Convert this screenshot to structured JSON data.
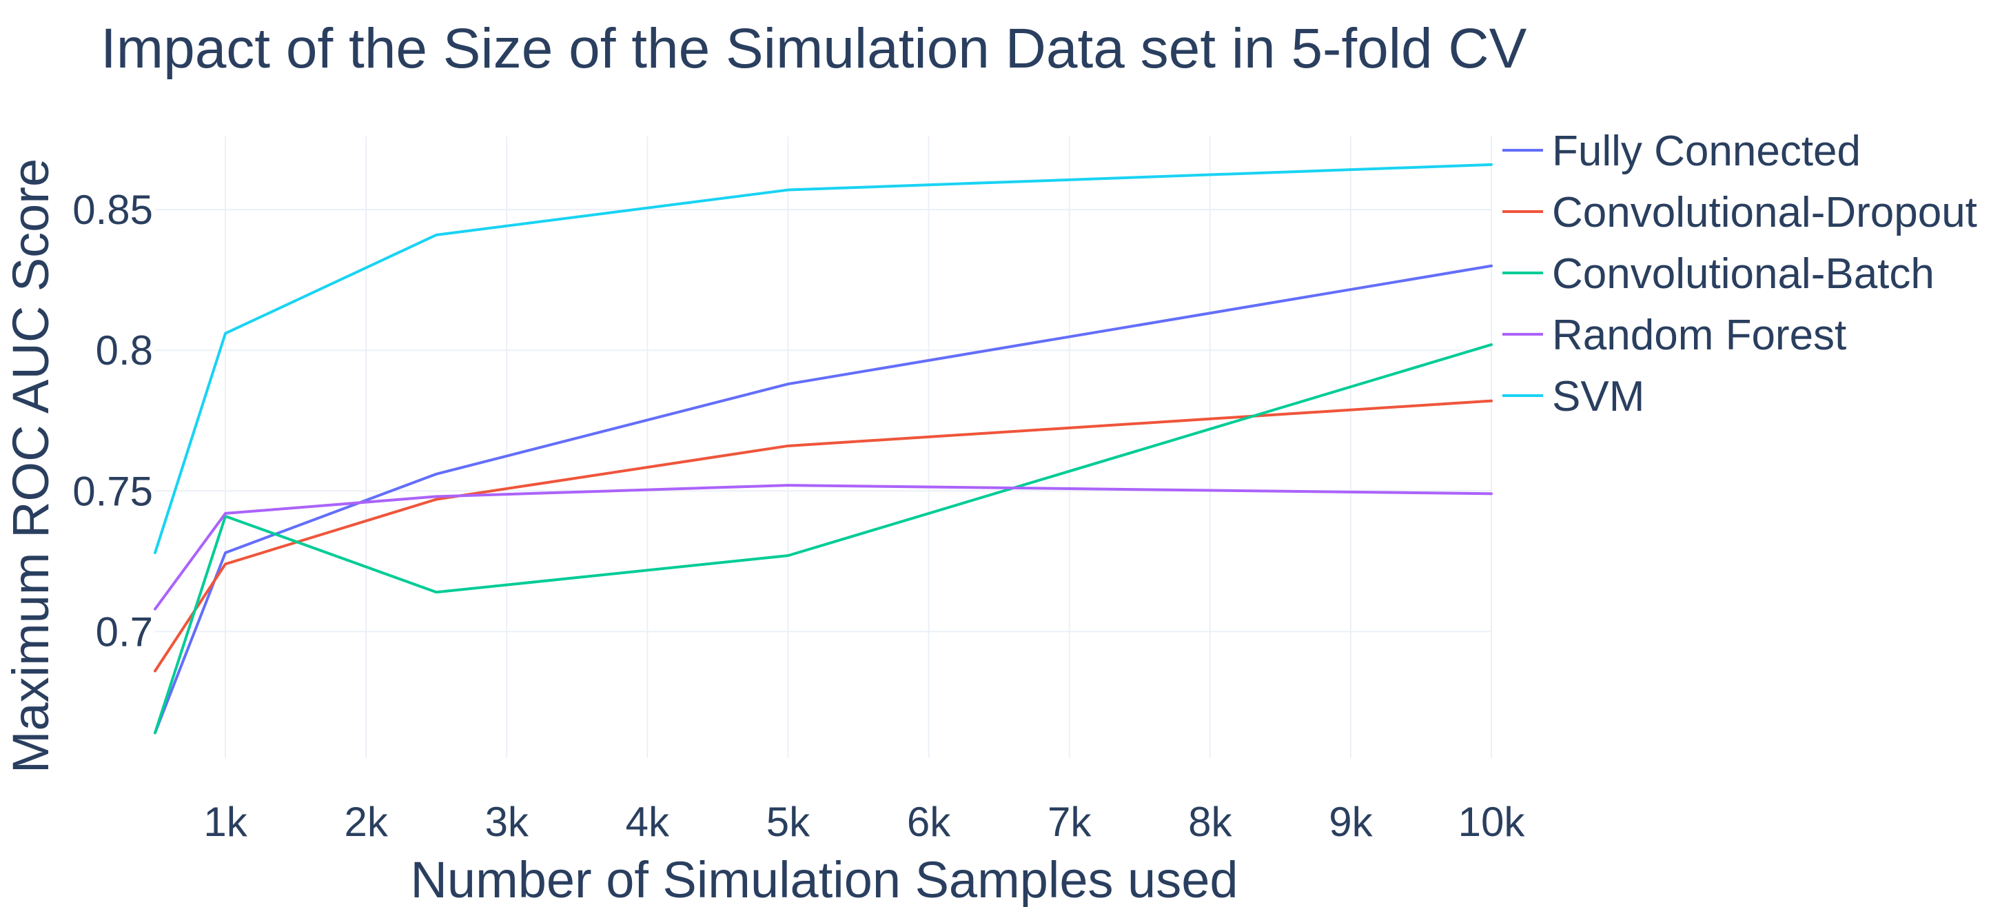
{
  "chart_data": {
    "type": "line",
    "title": "Impact of the Size of the Simulation Data set in 5-fold CV",
    "xlabel": "Number of Simulation Samples used",
    "ylabel": "Maximum ROC AUC Score",
    "x": [
      500,
      1000,
      2500,
      5000,
      10000
    ],
    "xlim": [
      500,
      10000
    ],
    "ylim": [
      0.655,
      0.876
    ],
    "x_ticks": [
      {
        "value": 1000,
        "label": "1k"
      },
      {
        "value": 2000,
        "label": "2k"
      },
      {
        "value": 3000,
        "label": "3k"
      },
      {
        "value": 4000,
        "label": "4k"
      },
      {
        "value": 5000,
        "label": "5k"
      },
      {
        "value": 6000,
        "label": "6k"
      },
      {
        "value": 7000,
        "label": "7k"
      },
      {
        "value": 8000,
        "label": "8k"
      },
      {
        "value": 9000,
        "label": "9k"
      },
      {
        "value": 10000,
        "label": "10k"
      }
    ],
    "y_ticks": [
      {
        "value": 0.7,
        "label": "0.7"
      },
      {
        "value": 0.75,
        "label": "0.75"
      },
      {
        "value": 0.8,
        "label": "0.8"
      },
      {
        "value": 0.85,
        "label": "0.85"
      }
    ],
    "grid": true,
    "legend_position": "top-right",
    "series": [
      {
        "name": "Fully Connected",
        "color": "#636efa",
        "values": [
          0.664,
          0.728,
          0.756,
          0.788,
          0.83
        ]
      },
      {
        "name": "Convolutional-Dropout",
        "color": "#EF553B",
        "values": [
          0.686,
          0.724,
          0.747,
          0.766,
          0.782
        ]
      },
      {
        "name": "Convolutional-Batch",
        "color": "#00cc96",
        "values": [
          0.664,
          0.741,
          0.714,
          0.727,
          0.802
        ]
      },
      {
        "name": "Random Forest",
        "color": "#ab63fa",
        "values": [
          0.708,
          0.742,
          0.748,
          0.752,
          0.749
        ]
      },
      {
        "name": "SVM",
        "color": "#19d3f3",
        "values": [
          0.728,
          0.806,
          0.841,
          0.857,
          0.866
        ]
      }
    ]
  }
}
